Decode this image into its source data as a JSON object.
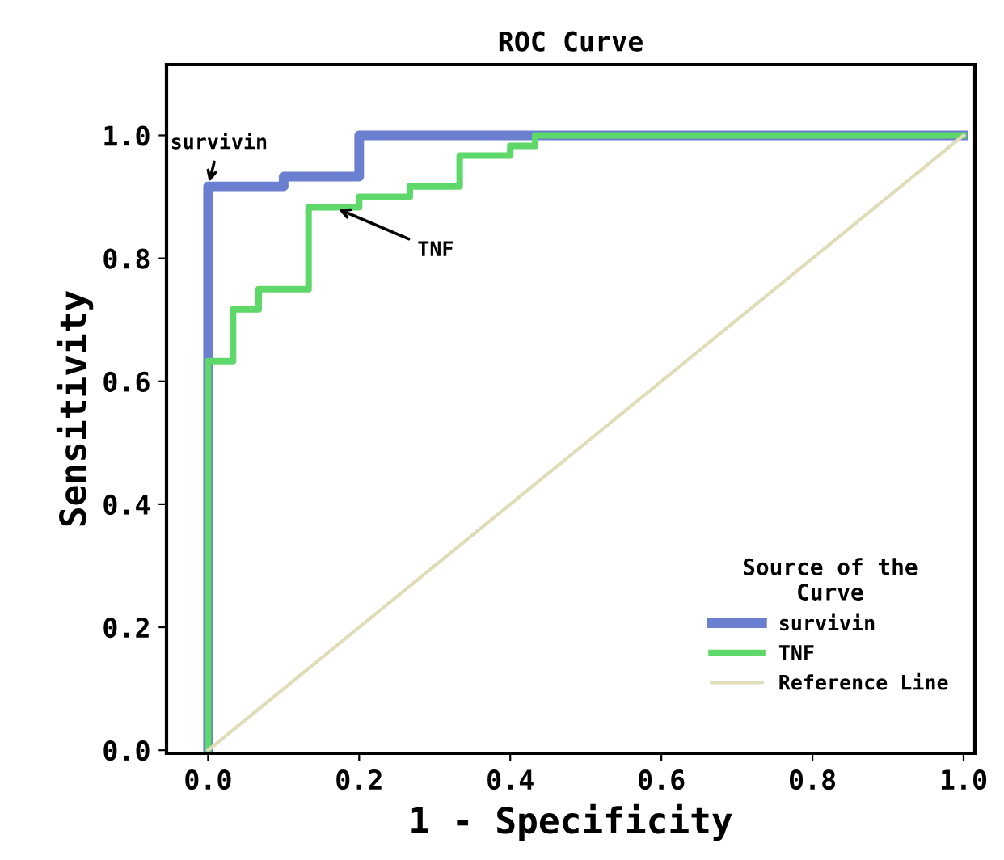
{
  "chart_data": {
    "type": "step",
    "title": "ROC Curve",
    "xlabel": "1 - Specificity",
    "ylabel": "Sensitivity",
    "legend_title": "Source of the\nCurve",
    "legend": "bottom right",
    "grid": false,
    "xlim": [
      -0.055,
      1.015
    ],
    "ylim": [
      -0.005,
      1.115
    ],
    "xticks": [
      {
        "value": 0,
        "label": "0.0"
      },
      {
        "value": 0.2,
        "label": "0.2"
      },
      {
        "value": 0.4,
        "label": "0.4"
      },
      {
        "value": 0.6,
        "label": "0.6"
      },
      {
        "value": 0.8,
        "label": "0.8"
      },
      {
        "value": 1,
        "label": "1.0"
      }
    ],
    "yticks": [
      {
        "value": 0,
        "label": "0.0"
      },
      {
        "value": 0.2,
        "label": "0.2"
      },
      {
        "value": 0.4,
        "label": "0.4"
      },
      {
        "value": 0.6,
        "label": "0.6"
      },
      {
        "value": 0.8,
        "label": "0.8"
      },
      {
        "value": 1,
        "label": "1.0"
      }
    ],
    "series": [
      {
        "name": "survivin",
        "color": "#6a7fd0",
        "x": [
          0,
          0,
          0.1,
          0.2,
          1
        ],
        "values": [
          0,
          0.917,
          0.933,
          1,
          1
        ]
      },
      {
        "name": "TNF",
        "color": "#5fd86a",
        "x": [
          0,
          0,
          0.033,
          0.067,
          0.133,
          0.2,
          0.267,
          0.333,
          0.4,
          0.433,
          1
        ],
        "values": [
          0,
          0.633,
          0.717,
          0.75,
          0.883,
          0.9,
          0.917,
          0.967,
          0.983,
          1,
          1
        ]
      },
      {
        "name": "Reference Line",
        "type": "line",
        "color": "#e0dcb8",
        "x": [
          0,
          1
        ],
        "values": [
          0,
          1
        ]
      }
    ],
    "annotations": [
      {
        "text": "survivin",
        "x": 0,
        "y": 0.917
      },
      {
        "text": "TNF",
        "x": 0.167,
        "y": 0.883
      }
    ]
  }
}
